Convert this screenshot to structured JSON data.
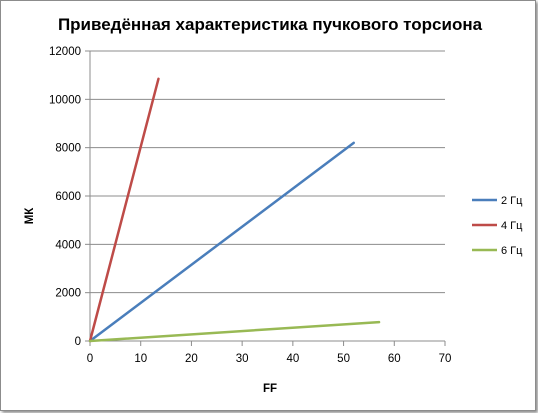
{
  "chart_data": {
    "type": "line",
    "title": "Приведённая характеристика пучкового торсиона",
    "xlabel": "FF",
    "ylabel": "МК",
    "xlim": [
      0,
      70
    ],
    "ylim": [
      0,
      12000
    ],
    "xticks": [
      "0",
      "10",
      "20",
      "30",
      "40",
      "50",
      "60",
      "70"
    ],
    "yticks": [
      "0",
      "2000",
      "4000",
      "6000",
      "8000",
      "10000",
      "12000"
    ],
    "grid": "horizontal",
    "legend_position": "right",
    "series": [
      {
        "name": "2 Гц",
        "color": "#4a7ebb",
        "x": [
          0,
          52
        ],
        "y": [
          0,
          8200
        ]
      },
      {
        "name": "4 Гц",
        "color": "#be4b48",
        "x": [
          0,
          13.5
        ],
        "y": [
          0,
          10850
        ]
      },
      {
        "name": "6 Гц",
        "color": "#98b954",
        "x": [
          0,
          57
        ],
        "y": [
          0,
          780
        ]
      }
    ]
  }
}
